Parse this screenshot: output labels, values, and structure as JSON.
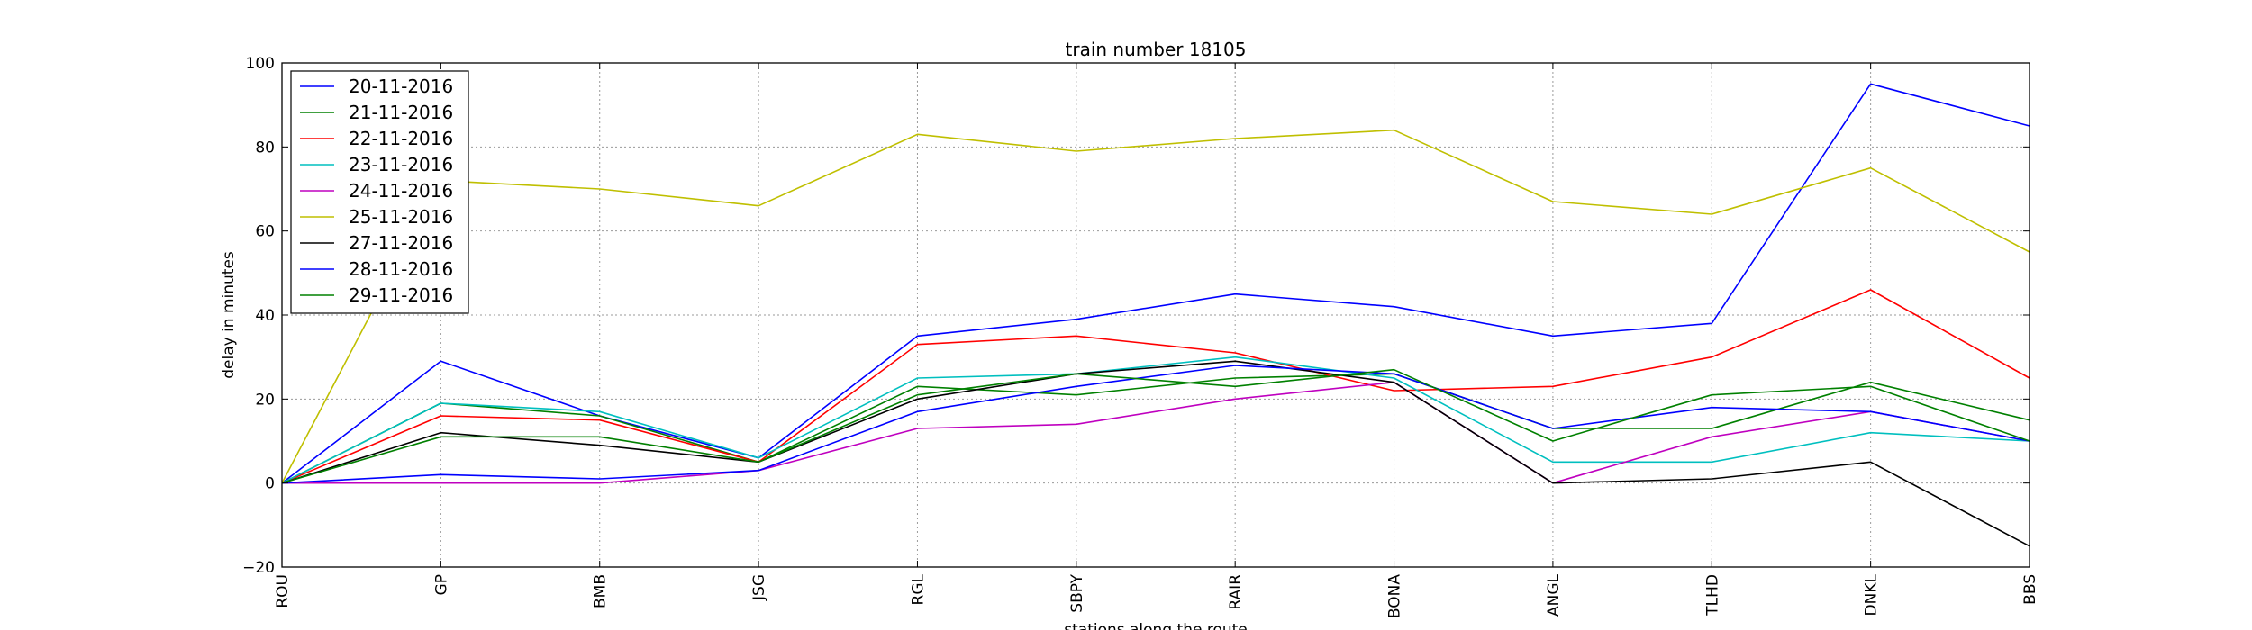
{
  "chart_data": {
    "type": "line",
    "title": "train number 18105",
    "xlabel": "stations along the route",
    "ylabel": "delay in minutes",
    "categories": [
      "ROU",
      "GP",
      "BMB",
      "JSG",
      "RGL",
      "SBPY",
      "RAIR",
      "BONA",
      "ANGL",
      "TLHD",
      "DNKL",
      "BBS"
    ],
    "ylim": [
      -20,
      100
    ],
    "yticks": [
      -20,
      0,
      20,
      40,
      60,
      80,
      100
    ],
    "grid": true,
    "legend_position": "top-left",
    "series": [
      {
        "name": "20-11-2016",
        "color": "#0000ff",
        "values": [
          0,
          29,
          16,
          6,
          35,
          39,
          45,
          42,
          35,
          38,
          95,
          85
        ]
      },
      {
        "name": "21-11-2016",
        "color": "#008000",
        "values": [
          0,
          19,
          16,
          5,
          23,
          21,
          25,
          26,
          13,
          13,
          24,
          15
        ]
      },
      {
        "name": "22-11-2016",
        "color": "#ff0000",
        "values": [
          0,
          16,
          15,
          5,
          33,
          35,
          31,
          22,
          23,
          30,
          46,
          25
        ]
      },
      {
        "name": "23-11-2016",
        "color": "#00bfbf",
        "values": [
          0,
          19,
          17,
          6,
          25,
          26,
          30,
          25,
          5,
          5,
          12,
          10
        ]
      },
      {
        "name": "24-11-2016",
        "color": "#bf00bf",
        "values": [
          0,
          0,
          0,
          3,
          13,
          14,
          20,
          24,
          0,
          11,
          17,
          10
        ]
      },
      {
        "name": "25-11-2016",
        "color": "#bfbf00",
        "values": [
          0,
          72,
          70,
          66,
          83,
          79,
          82,
          84,
          67,
          64,
          75,
          55
        ]
      },
      {
        "name": "27-11-2016",
        "color": "#000000",
        "values": [
          0,
          12,
          9,
          5,
          20,
          26,
          29,
          24,
          0,
          1,
          5,
          -15
        ]
      },
      {
        "name": "28-11-2016",
        "color": "#0000ff",
        "values": [
          0,
          2,
          1,
          3,
          17,
          23,
          28,
          26,
          13,
          18,
          17,
          10
        ]
      },
      {
        "name": "29-11-2016",
        "color": "#008000",
        "values": [
          0,
          11,
          11,
          5,
          21,
          26,
          23,
          27,
          10,
          21,
          23,
          10
        ]
      }
    ]
  }
}
